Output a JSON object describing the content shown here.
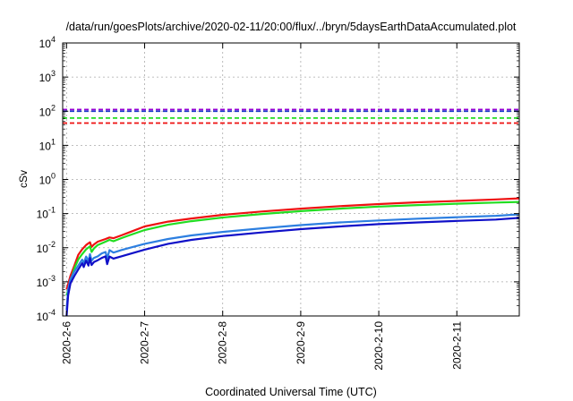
{
  "chart_data": {
    "type": "line",
    "title": "/data/run/goesPlots/archive/2020-02-11/20:00/flux/../bryn/5daysEarthDataAccumulated.plot",
    "xlabel": "Coordinated Universal Time (UTC)",
    "ylabel": "cSv",
    "x_unit": "days from 2020-02-06 00:00 UTC",
    "xlim": [
      -0.05,
      5.8
    ],
    "ylim_log10": [
      -4,
      4
    ],
    "yscale": "log",
    "grid": true,
    "x_ticks": [
      {
        "x": 0,
        "label": "2020-2-6"
      },
      {
        "x": 1,
        "label": "2020-2-7"
      },
      {
        "x": 2,
        "label": "2020-2-8"
      },
      {
        "x": 3,
        "label": "2020-2-9"
      },
      {
        "x": 4,
        "label": "2020-2-10"
      },
      {
        "x": 5,
        "label": "2020-2-11"
      }
    ],
    "y_ticks": [
      {
        "exp": -4,
        "base": "10",
        "sup": "-4"
      },
      {
        "exp": -3,
        "base": "10",
        "sup": "-3"
      },
      {
        "exp": -2,
        "base": "10",
        "sup": "-2"
      },
      {
        "exp": -1,
        "base": "10",
        "sup": "-1"
      },
      {
        "exp": 0,
        "base": "10",
        "sup": "0"
      },
      {
        "exp": 1,
        "base": "10",
        "sup": "1"
      },
      {
        "exp": 2,
        "base": "10",
        "sup": "2"
      },
      {
        "exp": 3,
        "base": "10",
        "sup": "3"
      },
      {
        "exp": 4,
        "base": "10",
        "sup": "4"
      }
    ],
    "thresholds": [
      {
        "value": 112,
        "color": "#9400d3"
      },
      {
        "value": 100,
        "color": "#1e3cc8"
      },
      {
        "value": 63,
        "color": "#22dd22"
      },
      {
        "value": 45,
        "color": "#ee1111"
      }
    ],
    "series": [
      {
        "color": "#ee1111",
        "x": [
          0,
          0.05,
          0.1,
          0.15,
          0.2,
          0.25,
          0.3,
          0.32,
          0.35,
          0.4,
          0.5,
          0.55,
          0.6,
          0.7,
          0.8,
          1.0,
          1.3,
          1.6,
          2.0,
          2.5,
          3.0,
          3.5,
          4.0,
          4.5,
          5.0,
          5.5,
          5.8
        ],
        "y": [
          0.0006,
          0.0015,
          0.003,
          0.0062,
          0.009,
          0.012,
          0.0145,
          0.0105,
          0.0125,
          0.015,
          0.018,
          0.02,
          0.019,
          0.023,
          0.028,
          0.042,
          0.058,
          0.072,
          0.092,
          0.115,
          0.14,
          0.165,
          0.19,
          0.215,
          0.235,
          0.26,
          0.28
        ]
      },
      {
        "color": "#22dd22",
        "x": [
          0,
          0.05,
          0.1,
          0.15,
          0.2,
          0.25,
          0.3,
          0.32,
          0.35,
          0.4,
          0.5,
          0.55,
          0.6,
          0.7,
          0.8,
          1.0,
          1.3,
          1.6,
          2.0,
          2.5,
          3.0,
          3.5,
          4.0,
          4.5,
          5.0,
          5.5,
          5.8
        ],
        "y": [
          0.0004,
          0.001,
          0.0025,
          0.0045,
          0.0065,
          0.009,
          0.011,
          0.0075,
          0.0095,
          0.012,
          0.015,
          0.017,
          0.0155,
          0.019,
          0.023,
          0.033,
          0.047,
          0.06,
          0.077,
          0.097,
          0.118,
          0.14,
          0.16,
          0.178,
          0.195,
          0.21,
          0.22
        ]
      },
      {
        "color": "#2d7fe0",
        "x": [
          0,
          0.02,
          0.05,
          0.1,
          0.15,
          0.2,
          0.22,
          0.25,
          0.28,
          0.3,
          0.32,
          0.35,
          0.4,
          0.45,
          0.5,
          0.52,
          0.55,
          0.6,
          0.7,
          0.8,
          1.0,
          1.3,
          1.6,
          2.0,
          2.5,
          3.0,
          3.5,
          4.0,
          4.5,
          5.0,
          5.5,
          5.8
        ],
        "y": [
          0.00015,
          0.0006,
          0.0012,
          0.002,
          0.003,
          0.0045,
          0.0035,
          0.0055,
          0.004,
          0.0065,
          0.0042,
          0.005,
          0.0056,
          0.0068,
          0.0075,
          0.0048,
          0.0085,
          0.0072,
          0.0085,
          0.0098,
          0.013,
          0.018,
          0.023,
          0.029,
          0.037,
          0.046,
          0.055,
          0.063,
          0.071,
          0.078,
          0.086,
          0.095
        ]
      },
      {
        "color": "#1010c8",
        "x": [
          0,
          0.02,
          0.05,
          0.1,
          0.15,
          0.2,
          0.22,
          0.25,
          0.28,
          0.3,
          0.32,
          0.35,
          0.4,
          0.45,
          0.5,
          0.52,
          0.55,
          0.6,
          0.7,
          0.8,
          1.0,
          1.3,
          1.6,
          2.0,
          2.5,
          3.0,
          3.5,
          4.0,
          4.5,
          5.0,
          5.5,
          5.8
        ],
        "y": [
          0.0001,
          0.0004,
          0.0009,
          0.0015,
          0.0023,
          0.0035,
          0.0027,
          0.0042,
          0.003,
          0.005,
          0.0031,
          0.0038,
          0.0043,
          0.005,
          0.0056,
          0.0033,
          0.0055,
          0.0048,
          0.0056,
          0.0065,
          0.0088,
          0.013,
          0.017,
          0.022,
          0.028,
          0.035,
          0.042,
          0.049,
          0.055,
          0.061,
          0.067,
          0.075
        ]
      }
    ]
  }
}
